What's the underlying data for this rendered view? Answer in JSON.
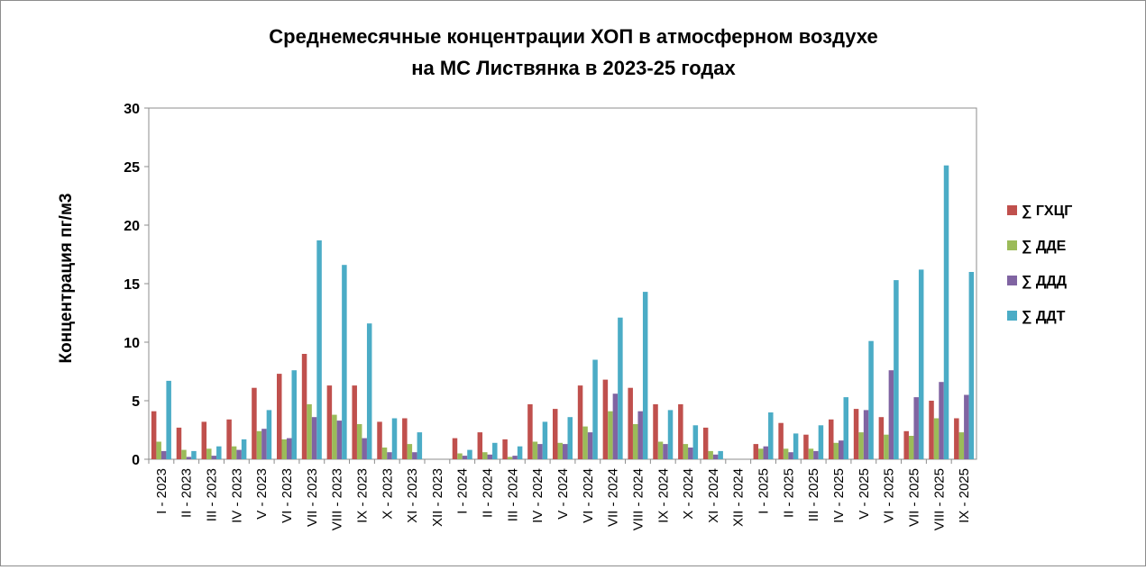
{
  "chart_data": {
    "type": "bar",
    "title_line1": "Среднемесячные концентрации ХОП в атмосферном воздухе",
    "title_line2": "на МС Листвянка  в 2023-25 годах",
    "ylabel": "Концентрация пг/м3",
    "xlabel": "",
    "ylim": [
      0,
      30
    ],
    "yticks": [
      "0",
      "5",
      "10",
      "15",
      "20",
      "25",
      "30"
    ],
    "grid": false,
    "legend_position": "right",
    "categories": [
      "I - 2023",
      "II - 2023",
      "III - 2023",
      "IV - 2023",
      "V - 2023",
      "VI - 2023",
      "VII - 2023",
      "VIII - 2023",
      "IX - 2023",
      "X - 2023",
      "XI - 2023",
      "XII - 2023",
      "I - 2024",
      "II - 2024",
      "III - 2024",
      "IV - 2024",
      "V - 2024",
      "VI - 2024",
      "VII - 2024",
      "VIII - 2024",
      "IX - 2024",
      "X - 2024",
      "XI - 2024",
      "XII - 2024",
      "I - 2025",
      "II - 2025",
      "III - 2025",
      "IV - 2025",
      "V - 2025",
      "VI - 2025",
      "VII - 2025",
      "VIII - 2025",
      "IX - 2025"
    ],
    "series": [
      {
        "name": "∑ ГХЦГ",
        "color": "#C0504D",
        "values": [
          4.1,
          2.7,
          3.2,
          3.4,
          6.1,
          7.3,
          9.0,
          6.3,
          6.3,
          3.2,
          3.5,
          0,
          1.8,
          2.3,
          1.7,
          4.7,
          4.3,
          6.3,
          6.8,
          6.1,
          4.7,
          4.7,
          2.7,
          0,
          1.3,
          3.1,
          2.1,
          3.4,
          4.3,
          3.6,
          2.4,
          5.0,
          3.5
        ]
      },
      {
        "name": "∑ ДДЕ",
        "color": "#9BBB59",
        "values": [
          1.5,
          0.8,
          0.9,
          1.1,
          2.4,
          1.7,
          4.7,
          3.8,
          3.0,
          1.0,
          1.3,
          0,
          0.5,
          0.6,
          0.2,
          1.5,
          1.4,
          2.8,
          4.1,
          3.0,
          1.5,
          1.3,
          0.7,
          0,
          0.9,
          0.9,
          0.9,
          1.4,
          2.3,
          2.1,
          2.0,
          3.5,
          2.3
        ]
      },
      {
        "name": "∑ ДДД",
        "color": "#8064A2",
        "values": [
          0.7,
          0.2,
          0.3,
          0.8,
          2.6,
          1.8,
          3.6,
          3.3,
          1.8,
          0.6,
          0.6,
          0,
          0.3,
          0.4,
          0.3,
          1.3,
          1.3,
          2.3,
          5.6,
          4.1,
          1.3,
          1.0,
          0.4,
          0,
          1.1,
          0.6,
          0.7,
          1.6,
          4.2,
          7.6,
          5.3,
          6.6,
          5.5
        ]
      },
      {
        "name": "∑ ДДТ",
        "color": "#4BACC6",
        "values": [
          6.7,
          0.7,
          1.1,
          1.7,
          4.2,
          7.6,
          18.7,
          16.6,
          11.6,
          3.5,
          2.3,
          0,
          0.8,
          1.4,
          1.1,
          3.2,
          3.6,
          8.5,
          12.1,
          14.3,
          4.2,
          2.9,
          0.7,
          0,
          4.0,
          2.2,
          2.9,
          5.3,
          10.1,
          15.3,
          16.2,
          25.1,
          16.0
        ]
      }
    ]
  }
}
